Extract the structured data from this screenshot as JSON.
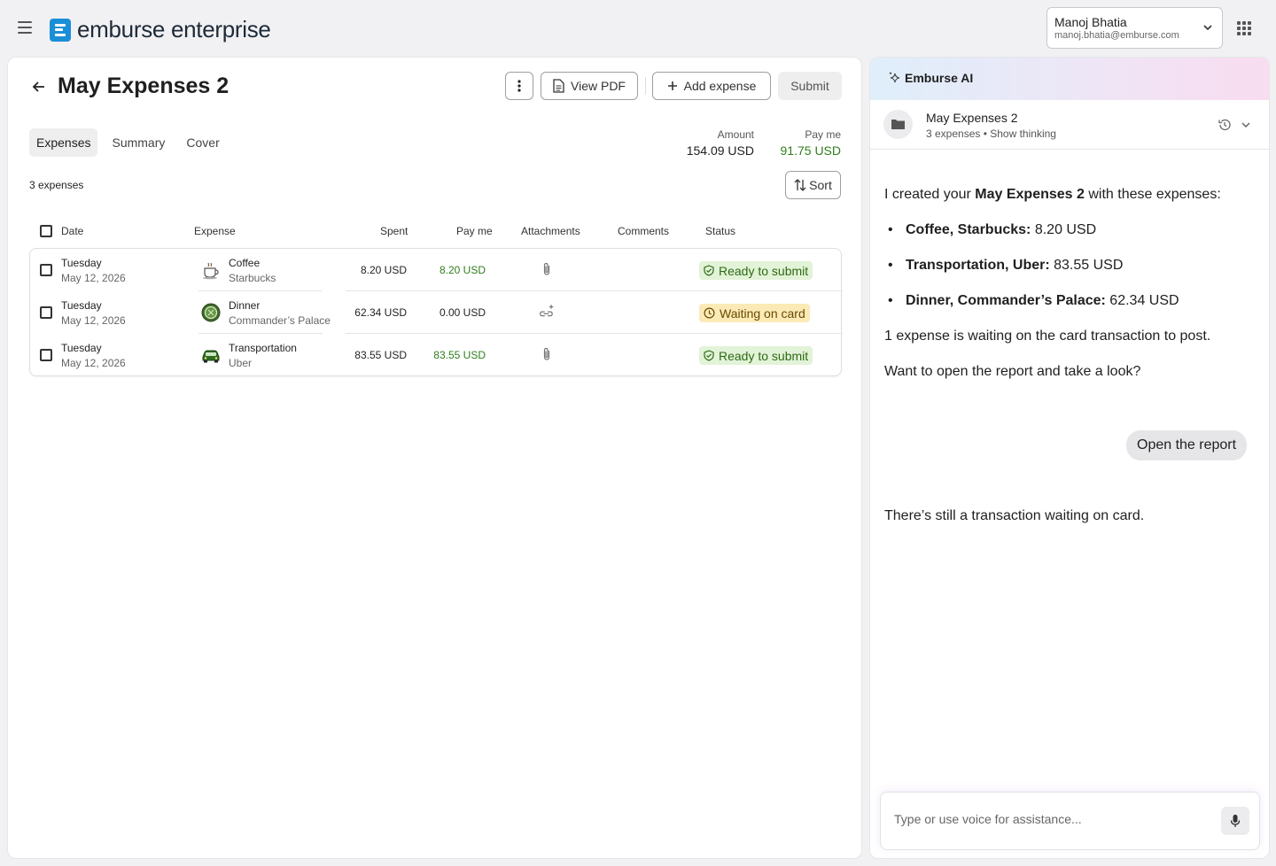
{
  "app": {
    "brand": "emburse enterprise",
    "brand_color": "#1a8fd8"
  },
  "user": {
    "name": "Manoj Bhatia",
    "email": "manoj.bhatia@emburse.com"
  },
  "report": {
    "title": "May Expenses 2",
    "buttons": {
      "view_pdf": "View PDF",
      "add_expense": "Add expense",
      "submit": "Submit"
    },
    "tabs": [
      {
        "label": "Expenses",
        "active": true
      },
      {
        "label": "Summary",
        "active": false
      },
      {
        "label": "Cover",
        "active": false
      }
    ],
    "totals": {
      "amount_label": "Amount",
      "amount": "154.09 USD",
      "payme_label": "Pay me",
      "payme": "91.75 USD"
    },
    "count": "3 expenses",
    "sort_label": "Sort",
    "columns": {
      "date": "Date",
      "expense": "Expense",
      "spent": "Spent",
      "payme": "Pay me",
      "attachments": "Attachments",
      "comments": "Comments",
      "status": "Status"
    },
    "rows": [
      {
        "day": "Tuesday",
        "date": "May 12, 2026",
        "category": "Coffee",
        "merchant": "Starbucks",
        "icon": "coffee-cup-icon",
        "spent": "8.20 USD",
        "payme": "8.20 USD",
        "attachment": "paperclip-icon",
        "status": "Ready to submit",
        "status_type": "ready"
      },
      {
        "day": "Tuesday",
        "date": "May 12, 2026",
        "category": "Dinner",
        "merchant": "Commander’s Palace",
        "icon": "dinner-plate-icon",
        "spent": "62.34 USD",
        "payme": "0.00 USD",
        "attachment": "link-add-icon",
        "status": "Waiting on card",
        "status_type": "waiting"
      },
      {
        "day": "Tuesday",
        "date": "May 12, 2026",
        "category": "Transportation",
        "merchant": "Uber",
        "icon": "car-icon",
        "spent": "83.55 USD",
        "payme": "83.55 USD",
        "attachment": "paperclip-icon",
        "status": "Ready to submit",
        "status_type": "ready"
      }
    ]
  },
  "ai": {
    "title": "Emburse AI",
    "conversation": {
      "title": "May Expenses 2",
      "subtitle": "3 expenses • Show thinking"
    },
    "messages": {
      "intro_a": "I created your ",
      "intro_b": "May Expenses 2",
      "intro_c": " with these expenses:",
      "bullets": [
        {
          "label": "Coffee, Starbucks:",
          "value": " 8.20 USD"
        },
        {
          "label": "Transportation, Uber:",
          "value": " 83.55 USD"
        },
        {
          "label": "Dinner, Commander’s Palace:",
          "value": " 62.34 USD"
        }
      ],
      "pending": "1 expense is waiting on the card transaction to post.",
      "question": "Want to open the report and take a look?",
      "user_reply": "Open the report",
      "followup": "There’s still a transaction waiting on card."
    },
    "input_placeholder": "Type or use voice for assistance..."
  }
}
